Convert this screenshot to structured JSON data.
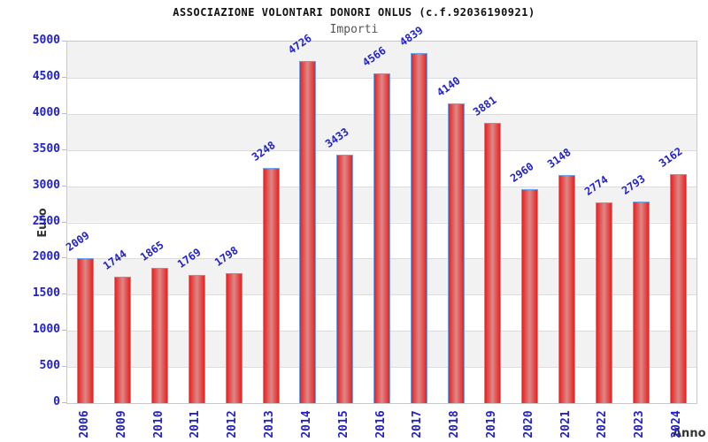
{
  "header": {
    "title": "ASSOCIAZIONE VOLONTARI DONORI ONLUS (c.f.92036190921)",
    "subtitle": "Importi"
  },
  "axes": {
    "y_label": "Euro",
    "x_label": "Anno"
  },
  "colors": {
    "label_blue": "#2222cc",
    "bar_fill_edge": "#e82222",
    "bar_fill_center": "#db8888",
    "bar_border": "#6ba3e7",
    "band_gray": "#f2f2f2",
    "band_white": "#ffffff",
    "grid_line": "#dcdcdc",
    "plot_border": "#c9c9c9",
    "title_color": "#111111",
    "subtitle_color": "#555555",
    "axis_label_color": "#333333"
  },
  "chart_data": {
    "type": "bar",
    "title": "ASSOCIAZIONE VOLONTARI DONORI ONLUS (c.f.92036190921)",
    "subtitle": "Importi",
    "xlabel": "Anno",
    "ylabel": "Euro",
    "categories": [
      "2006",
      "2009",
      "2010",
      "2011",
      "2012",
      "2013",
      "2014",
      "2015",
      "2016",
      "2017",
      "2018",
      "2019",
      "2020",
      "2021",
      "2022",
      "2023",
      "2024"
    ],
    "values": [
      2009,
      1744,
      1865,
      1769,
      1798,
      3248,
      4726,
      3433,
      4566,
      4839,
      4140,
      3881,
      2960,
      3148,
      2774,
      2793,
      3162
    ],
    "ylim": [
      0,
      5000
    ],
    "ytick_step": 500,
    "legend": "none",
    "grid": "horizontal-bands-alternating"
  }
}
